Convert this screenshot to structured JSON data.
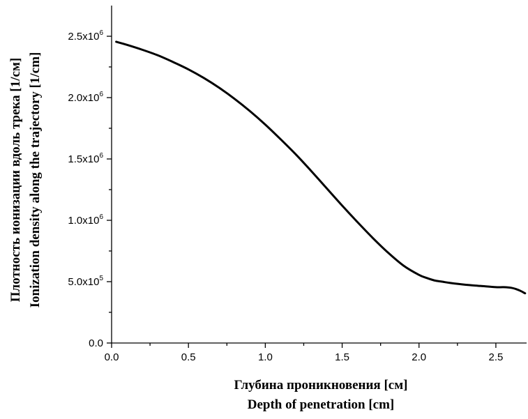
{
  "chart_data": {
    "type": "line",
    "title": "",
    "xlabel_lines": [
      "Глубина проникновения [см]",
      "Depth of penetration [cm]"
    ],
    "ylabel_lines": [
      "Плотность ионизации вдоль трека [1/см]",
      "Ionization density along the trajectory [1/cm]"
    ],
    "xlim": [
      0,
      2.7
    ],
    "ylim": [
      0,
      2750000.0
    ],
    "x_ticks": [
      {
        "value": 0.0,
        "label": "0.0"
      },
      {
        "value": 0.5,
        "label": "0.5"
      },
      {
        "value": 1.0,
        "label": "1.0"
      },
      {
        "value": 1.5,
        "label": "1.5"
      },
      {
        "value": 2.0,
        "label": "2.0"
      },
      {
        "value": 2.5,
        "label": "2.5"
      }
    ],
    "x_minor_step": 0.25,
    "y_ticks": [
      {
        "value": 0,
        "mantissa": "0.0",
        "exp": ""
      },
      {
        "value": 500000,
        "mantissa": "5.0x10",
        "exp": "5"
      },
      {
        "value": 1000000,
        "mantissa": "1.0x10",
        "exp": "6"
      },
      {
        "value": 1500000,
        "mantissa": "1.5x10",
        "exp": "6"
      },
      {
        "value": 2000000,
        "mantissa": "2.0x10",
        "exp": "6"
      },
      {
        "value": 2500000,
        "mantissa": "2.5x10",
        "exp": "6"
      }
    ],
    "y_minor_step": 250000,
    "grid": false,
    "series": [
      {
        "color": "#000000",
        "x": [
          0.03,
          0.1,
          0.2,
          0.3,
          0.4,
          0.5,
          0.6,
          0.7,
          0.8,
          0.9,
          1.0,
          1.1,
          1.2,
          1.3,
          1.4,
          1.5,
          1.6,
          1.7,
          1.8,
          1.9,
          2.0,
          2.05,
          2.1,
          2.15,
          2.2,
          2.3,
          2.4,
          2.5,
          2.55,
          2.6,
          2.63,
          2.66,
          2.69
        ],
        "y": [
          2455000,
          2430000,
          2390000,
          2345000,
          2290000,
          2230000,
          2160000,
          2080000,
          1990000,
          1890000,
          1780000,
          1660000,
          1535000,
          1400000,
          1260000,
          1120000,
          985000,
          855000,
          735000,
          630000,
          555000,
          530000,
          510000,
          500000,
          490000,
          475000,
          465000,
          455000,
          455000,
          450000,
          440000,
          425000,
          405000
        ]
      }
    ]
  }
}
